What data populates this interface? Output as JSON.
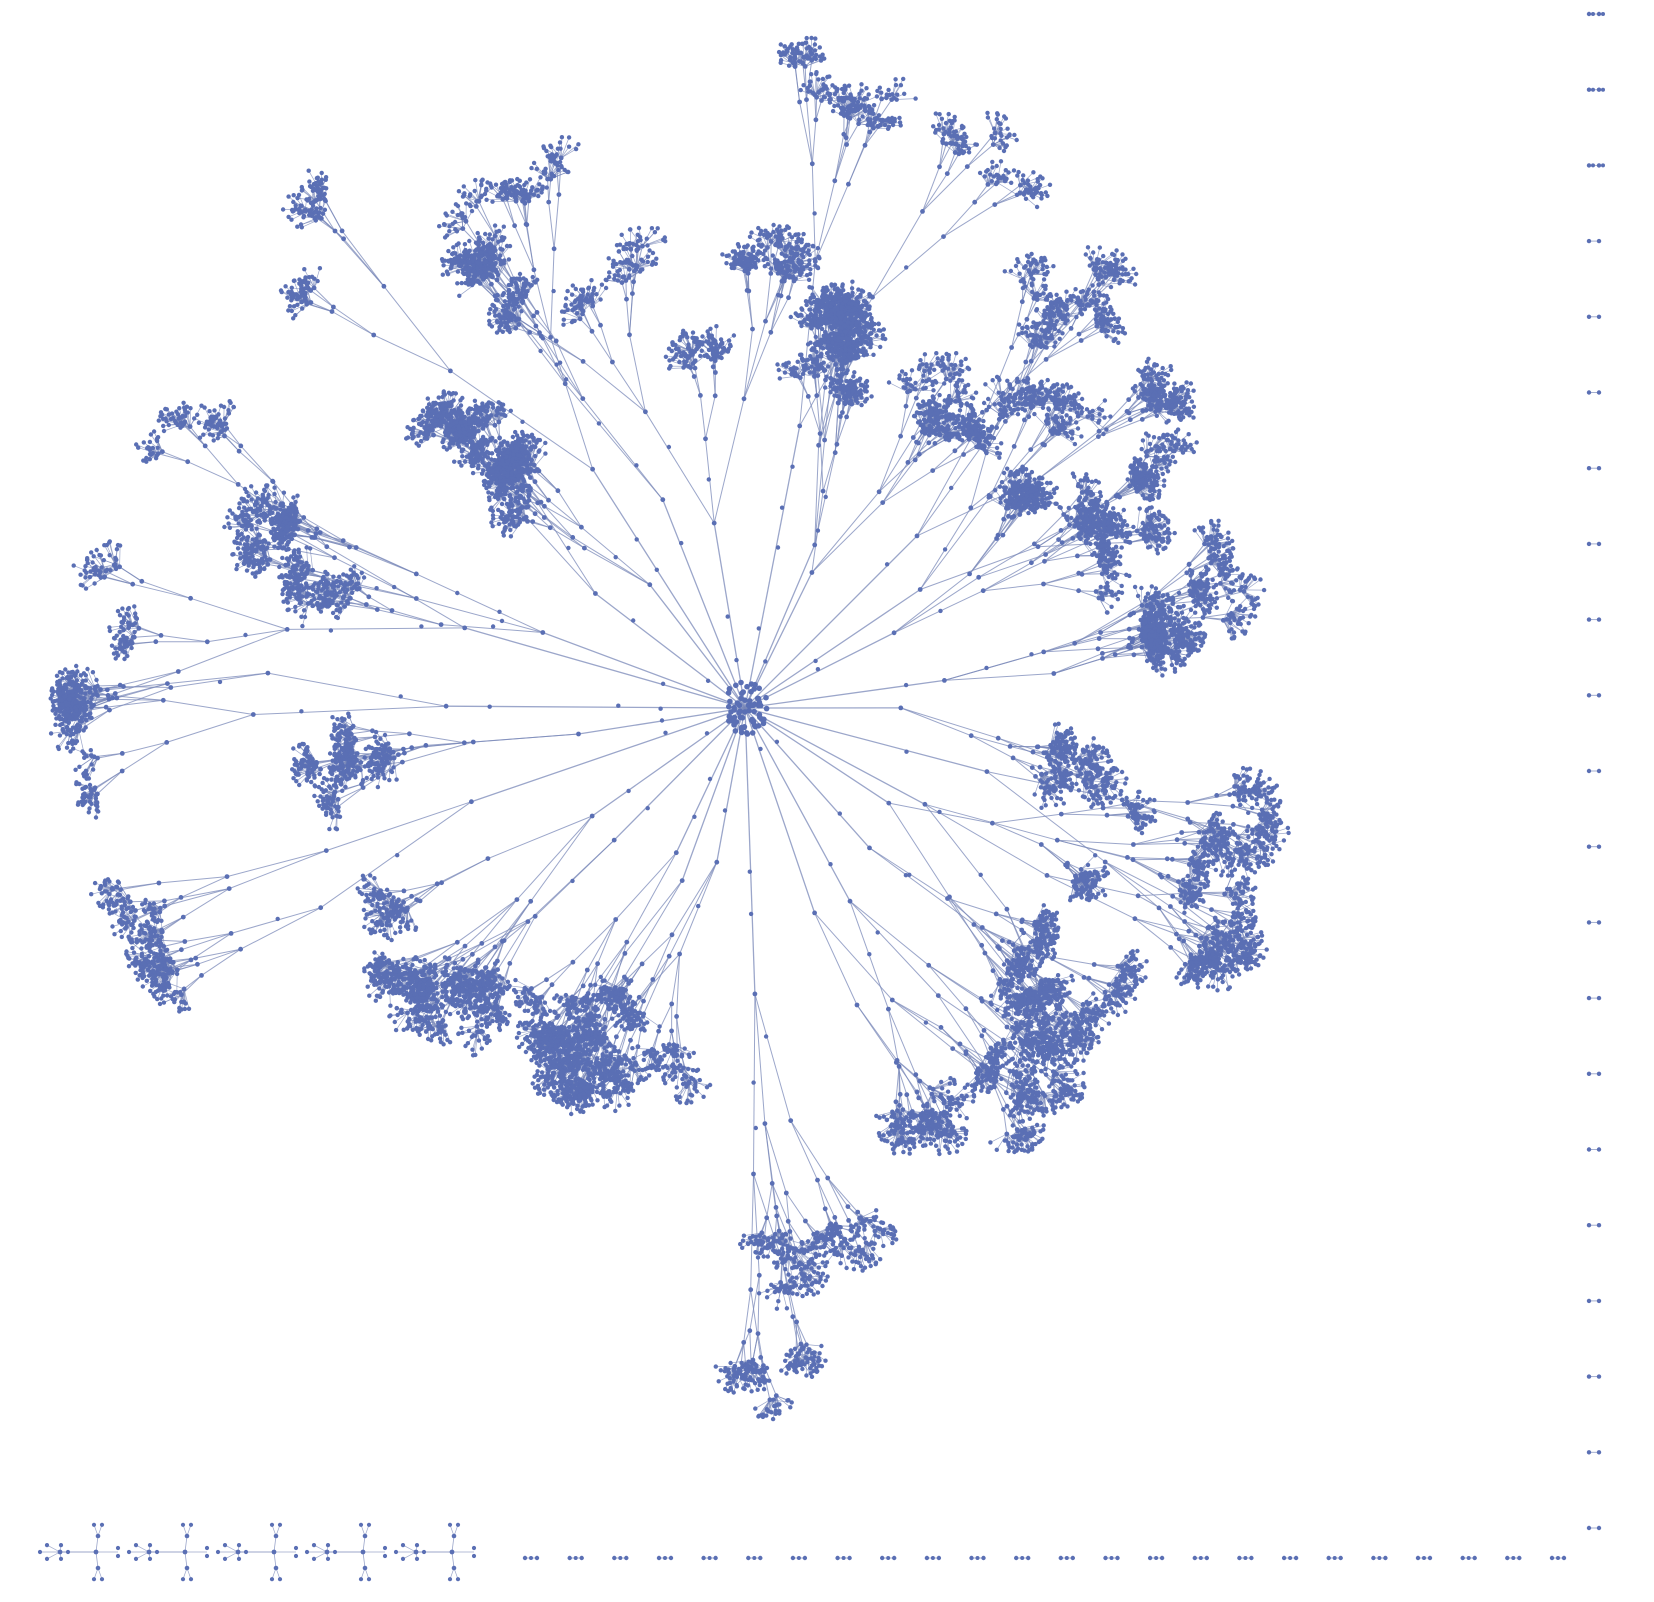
{
  "diagram": {
    "type": "radial-tree-graph",
    "node_color": "#5a6fb4",
    "edge_color": "#7a88b8",
    "background": "#ffffff",
    "main_component": {
      "hub_count": 1,
      "branch_count": 30,
      "branch_depth": 4,
      "children_per_node": 3,
      "leaf_cluster_size": 9
    },
    "small_components": {
      "tree_count": 5,
      "leaves_per_tree": 6
    },
    "isolated_pairs": {
      "right_column": 21,
      "bottom_row": 24
    }
  }
}
